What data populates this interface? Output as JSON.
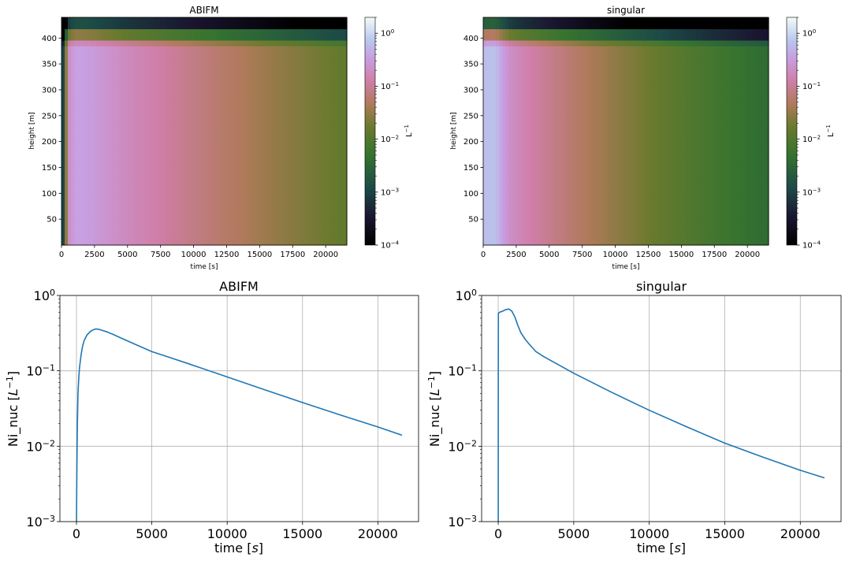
{
  "chart_data": [
    {
      "type": "heatmap",
      "title": "ABIFM",
      "xlabel": "time [s]",
      "ylabel": "height [m]",
      "xlim": [
        0,
        21600
      ],
      "ylim": [
        0,
        440
      ],
      "xticks": [
        0,
        2500,
        5000,
        7500,
        10000,
        12500,
        15000,
        17500,
        20000
      ],
      "yticks": [
        50,
        100,
        150,
        200,
        250,
        300,
        350,
        400
      ],
      "colorbar": {
        "label": "L^-1",
        "scale": "log",
        "range": [
          0.0001,
          2
        ],
        "ticks": [
          {
            "value": 1,
            "label": "10^0"
          },
          {
            "value": 0.1,
            "label": "10^-1"
          },
          {
            "value": 0.01,
            "label": "10^-2"
          },
          {
            "value": 0.001,
            "label": "10^-3"
          },
          {
            "value": 0.0001,
            "label": "10^-4"
          }
        ],
        "colormap": "cubehelix"
      },
      "series": [
        {
          "x": [
            0,
            500,
            1000,
            1500,
            2000,
            3000,
            4000,
            5000,
            7500,
            10000,
            12500,
            15000,
            17500,
            20000,
            21600
          ],
          "values": [
            0.0002,
            0.2,
            0.35,
            0.36,
            0.33,
            0.27,
            0.22,
            0.18,
            0.12,
            0.08,
            0.055,
            0.038,
            0.026,
            0.018,
            0.014
          ]
        }
      ]
    },
    {
      "type": "heatmap",
      "title": "singular",
      "xlabel": "time [s]",
      "ylabel": "height [m]",
      "xlim": [
        0,
        21600
      ],
      "ylim": [
        0,
        440
      ],
      "xticks": [
        0,
        2500,
        5000,
        7500,
        10000,
        12500,
        15000,
        17500,
        20000
      ],
      "yticks": [
        50,
        100,
        150,
        200,
        250,
        300,
        350,
        400
      ],
      "colorbar": {
        "label": "L^-1",
        "scale": "log",
        "range": [
          0.0001,
          2
        ],
        "ticks": [
          {
            "value": 1,
            "label": "10^0"
          },
          {
            "value": 0.1,
            "label": "10^-1"
          },
          {
            "value": 0.01,
            "label": "10^-2"
          },
          {
            "value": 0.001,
            "label": "10^-3"
          },
          {
            "value": 0.0001,
            "label": "10^-4"
          }
        ],
        "colormap": "cubehelix"
      },
      "series": [
        {
          "x": [
            0,
            300,
            700,
            1000,
            1500,
            2000,
            3000,
            5000,
            7500,
            10000,
            12500,
            15000,
            17500,
            20000,
            21600
          ],
          "values": [
            0.6,
            0.63,
            0.66,
            0.6,
            0.35,
            0.22,
            0.15,
            0.09,
            0.05,
            0.03,
            0.018,
            0.011,
            0.0072,
            0.0048,
            0.0038
          ]
        }
      ]
    },
    {
      "type": "line",
      "title": "ABIFM",
      "xlabel": "time [s]",
      "ylabel": "Ni_nuc [L^-1]",
      "yscale": "log",
      "xlim": [
        -1100,
        22700
      ],
      "ylim": [
        0.001,
        1
      ],
      "xticks": [
        0,
        5000,
        10000,
        15000,
        20000
      ],
      "yticks": [
        {
          "value": 1,
          "label": "10^0"
        },
        {
          "value": 0.1,
          "label": "10^-1"
        },
        {
          "value": 0.01,
          "label": "10^-2"
        },
        {
          "value": 0.001,
          "label": "10^-3"
        }
      ],
      "grid": true,
      "series": [
        {
          "color": "#1f77b4",
          "x": [
            0,
            30,
            60,
            100,
            150,
            200,
            300,
            400,
            500,
            700,
            900,
            1100,
            1300,
            1500,
            2000,
            2500,
            3000,
            4000,
            5000,
            6000,
            7500,
            10000,
            12500,
            15000,
            17500,
            20000,
            21600
          ],
          "y": [
            0.001,
            0.006,
            0.02,
            0.05,
            0.08,
            0.11,
            0.16,
            0.21,
            0.25,
            0.3,
            0.33,
            0.35,
            0.36,
            0.355,
            0.33,
            0.3,
            0.27,
            0.22,
            0.18,
            0.155,
            0.123,
            0.083,
            0.056,
            0.038,
            0.026,
            0.018,
            0.014
          ]
        }
      ]
    },
    {
      "type": "line",
      "title": "singular",
      "xlabel": "time [s]",
      "ylabel": "Ni_nuc [L^-1]",
      "yscale": "log",
      "xlim": [
        -1100,
        22700
      ],
      "ylim": [
        0.001,
        1
      ],
      "xticks": [
        0,
        5000,
        10000,
        15000,
        20000
      ],
      "yticks": [
        {
          "value": 1,
          "label": "10^0"
        },
        {
          "value": 0.1,
          "label": "10^-1"
        },
        {
          "value": 0.01,
          "label": "10^-2"
        },
        {
          "value": 0.001,
          "label": "10^-3"
        }
      ],
      "grid": true,
      "series": [
        {
          "color": "#1f77b4",
          "x": [
            0,
            5,
            10,
            50,
            100,
            300,
            500,
            700,
            900,
            1100,
            1300,
            1500,
            1800,
            2100,
            2500,
            3000,
            4000,
            5000,
            7500,
            10000,
            12500,
            15000,
            17500,
            20000,
            21600
          ],
          "y": [
            0.001,
            0.1,
            0.58,
            0.59,
            0.6,
            0.62,
            0.65,
            0.66,
            0.62,
            0.52,
            0.4,
            0.32,
            0.26,
            0.22,
            0.18,
            0.155,
            0.12,
            0.093,
            0.052,
            0.03,
            0.018,
            0.011,
            0.0072,
            0.0048,
            0.0038
          ]
        }
      ]
    }
  ]
}
